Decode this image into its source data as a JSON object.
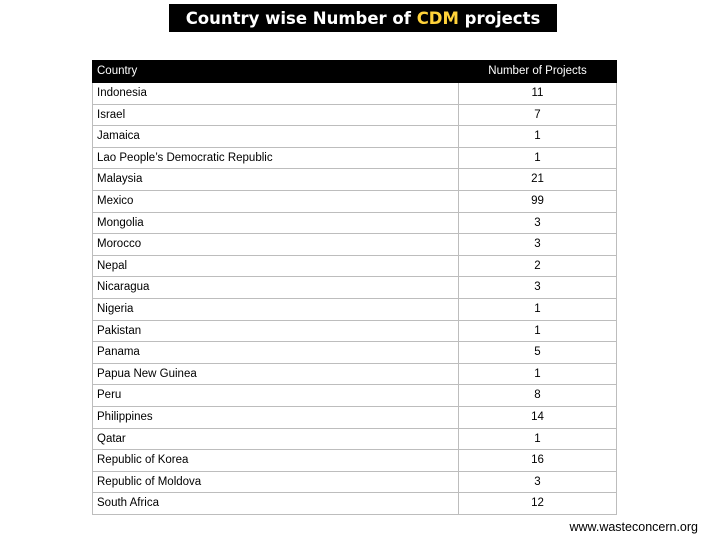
{
  "title": {
    "before": "Country wise Number of ",
    "accent": "CDM",
    "after": " projects"
  },
  "table": {
    "headers": {
      "country": "Country",
      "count": "Number of Projects"
    },
    "rows": [
      {
        "country": "Indonesia",
        "count": "11"
      },
      {
        "country": "Israel",
        "count": "7"
      },
      {
        "country": "Jamaica",
        "count": "1"
      },
      {
        "country": "Lao People’s Democratic Republic",
        "count": "1"
      },
      {
        "country": "Malaysia",
        "count": "21"
      },
      {
        "country": "Mexico",
        "count": "99"
      },
      {
        "country": "Mongolia",
        "count": "3"
      },
      {
        "country": "Morocco",
        "count": "3"
      },
      {
        "country": "Nepal",
        "count": "2"
      },
      {
        "country": "Nicaragua",
        "count": "3"
      },
      {
        "country": "Nigeria",
        "count": "1"
      },
      {
        "country": "Pakistan",
        "count": "1"
      },
      {
        "country": "Panama",
        "count": "5"
      },
      {
        "country": "Papua New Guinea",
        "count": "1"
      },
      {
        "country": "Peru",
        "count": "8"
      },
      {
        "country": "Philippines",
        "count": "14"
      },
      {
        "country": "Qatar",
        "count": "1"
      },
      {
        "country": "Republic of Korea",
        "count": "16"
      },
      {
        "country": "Republic of Moldova",
        "count": "3"
      },
      {
        "country": "South Africa",
        "count": "12"
      }
    ]
  },
  "footer": {
    "url": "www.wasteconcern.org"
  },
  "colors": {
    "title_bg": "#000000",
    "title_text": "#ffffff",
    "title_accent": "#ffd23a",
    "header_bg": "#000000"
  }
}
